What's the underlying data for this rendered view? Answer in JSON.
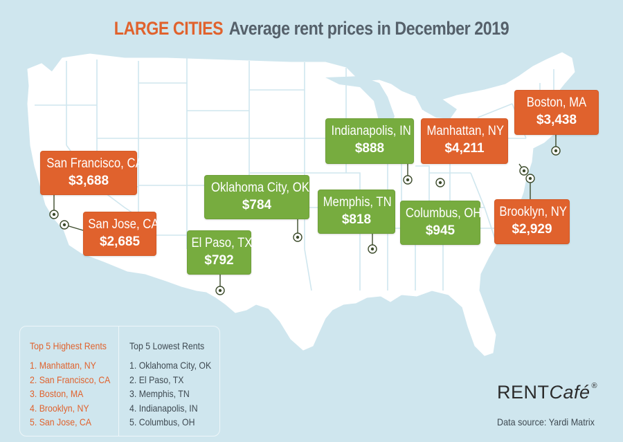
{
  "title": {
    "highlight": "LARGE CITIES",
    "rest": "Average rent prices in December 2019"
  },
  "colors": {
    "background": "#cfe6ee",
    "land": "#ffffff",
    "state_border": "#cfe6ee",
    "high_rent": "#e0622d",
    "low_rent": "#77ac3f",
    "marker": "#3b4a2a"
  },
  "cities": [
    {
      "name": "San Francisco, CA",
      "price": "$3,688",
      "category": "high"
    },
    {
      "name": "San Jose, CA",
      "price": "$2,685",
      "category": "high"
    },
    {
      "name": "Oklahoma City, OK",
      "price": "$784",
      "category": "low"
    },
    {
      "name": "El Paso, TX",
      "price": "$792",
      "category": "low"
    },
    {
      "name": "Indianapolis, IN",
      "price": "$888",
      "category": "low"
    },
    {
      "name": "Memphis, TN",
      "price": "$818",
      "category": "low"
    },
    {
      "name": "Manhattan, NY",
      "price": "$4,211",
      "category": "high"
    },
    {
      "name": "Columbus, OH",
      "price": "$945",
      "category": "low"
    },
    {
      "name": "Boston, MA",
      "price": "$3,438",
      "category": "high"
    },
    {
      "name": "Brooklyn, NY",
      "price": "$2,929",
      "category": "high"
    }
  ],
  "legend": {
    "highest": {
      "heading": "Top 5 Highest Rents",
      "items": [
        "1. Manhattan, NY",
        "2. San Francisco, CA",
        "3. Boston, MA",
        "4. Brooklyn, NY",
        "5. San Jose, CA"
      ]
    },
    "lowest": {
      "heading": "Top 5 Lowest Rents",
      "items": [
        "1. Oklahoma City, OK",
        "2. El Paso, TX",
        "3. Memphis, TN",
        "4. Indianapolis, IN",
        "5. Columbus, OH"
      ]
    }
  },
  "brand": {
    "main": "RENT",
    "italic": "Café",
    "reg": "®"
  },
  "source": "Data source:  Yardi Matrix"
}
